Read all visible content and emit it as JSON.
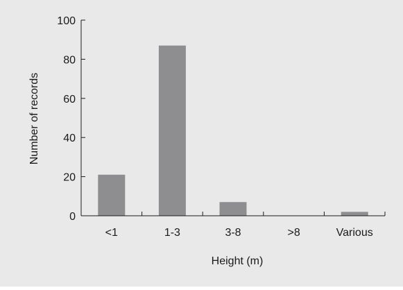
{
  "chart_data": {
    "type": "bar",
    "title": "",
    "xlabel": "Height (m)",
    "ylabel": "Number of records",
    "categories": [
      "<1",
      "1-3",
      "3-8",
      ">8",
      "Various"
    ],
    "values": [
      21,
      87,
      7,
      0,
      2
    ],
    "ylim": [
      0,
      100
    ],
    "yticks": [
      0,
      20,
      40,
      60,
      80,
      100
    ],
    "ytick_labels": [
      "0",
      "20",
      "40",
      "60",
      "80",
      "100"
    ],
    "grid": false,
    "legend": "none",
    "bar_color": "#8e8e90",
    "background_color": "#e9e9ea",
    "axis_color": "#1a1a1a"
  }
}
